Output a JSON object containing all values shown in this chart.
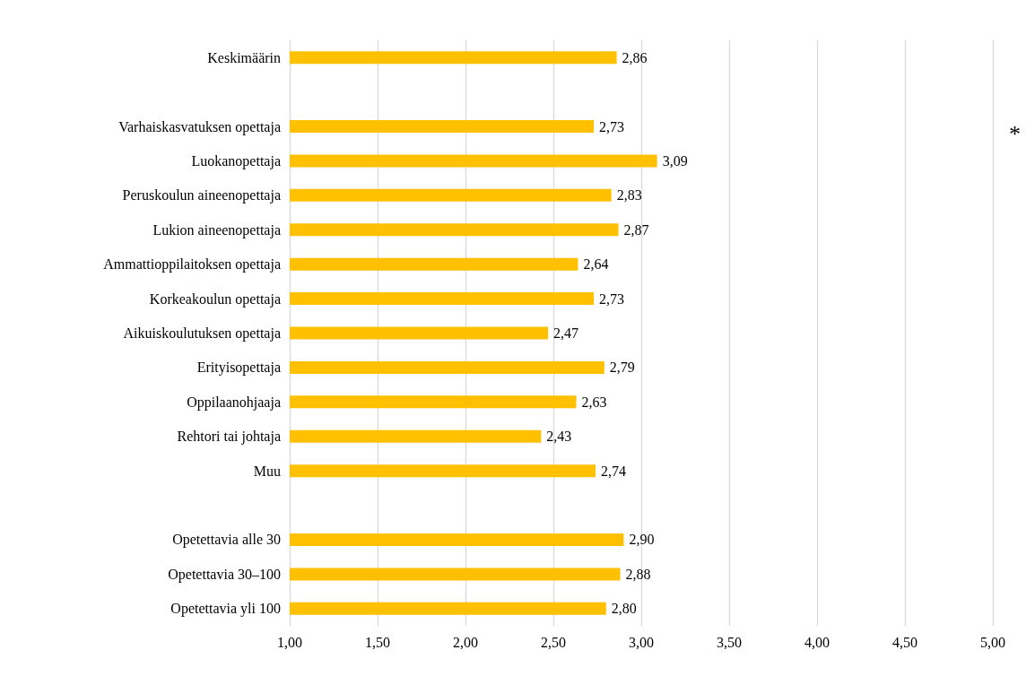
{
  "chart_data": {
    "type": "bar",
    "orientation": "horizontal",
    "categories": [
      "Keskimäärin",
      null,
      "Varhaiskasvatuksen opettaja",
      "Luokanopettaja",
      "Peruskoulun aineenopettaja",
      "Lukion aineenopettaja",
      "Ammattioppilaitoksen opettaja",
      "Korkeakoulun opettaja",
      "Aikuiskoulutuksen opettaja",
      "Erityisopettaja",
      "Oppilaanohjaaja",
      "Rehtori tai johtaja",
      "Muu",
      null,
      "Opetettavia alle 30",
      "Opetettavia 30–100",
      "Opetettavia yli 100"
    ],
    "values": [
      2.86,
      null,
      2.73,
      3.09,
      2.83,
      2.87,
      2.64,
      2.73,
      2.47,
      2.79,
      2.63,
      2.43,
      2.74,
      null,
      2.9,
      2.88,
      2.8
    ],
    "value_labels": [
      "2,86",
      null,
      "2,73",
      "3,09",
      "2,83",
      "2,87",
      "2,64",
      "2,73",
      "2,47",
      "2,79",
      "2,63",
      "2,43",
      "2,74",
      null,
      "2,90",
      "2,88",
      "2,80"
    ],
    "color": "#ffc000",
    "xlim": [
      1,
      5
    ],
    "xticks": [
      {
        "value": 1,
        "label": "1,00"
      },
      {
        "value": 1.5,
        "label": "1,50"
      },
      {
        "value": 2,
        "label": "2,00"
      },
      {
        "value": 2.5,
        "label": "2,50"
      },
      {
        "value": 3,
        "label": "3,00"
      },
      {
        "value": 3.5,
        "label": "3,50"
      },
      {
        "value": 4,
        "label": "4,00"
      },
      {
        "value": 4.5,
        "label": "4,50"
      },
      {
        "value": 5,
        "label": "5,00"
      }
    ],
    "grid": "x",
    "annotations": [
      "*"
    ]
  }
}
